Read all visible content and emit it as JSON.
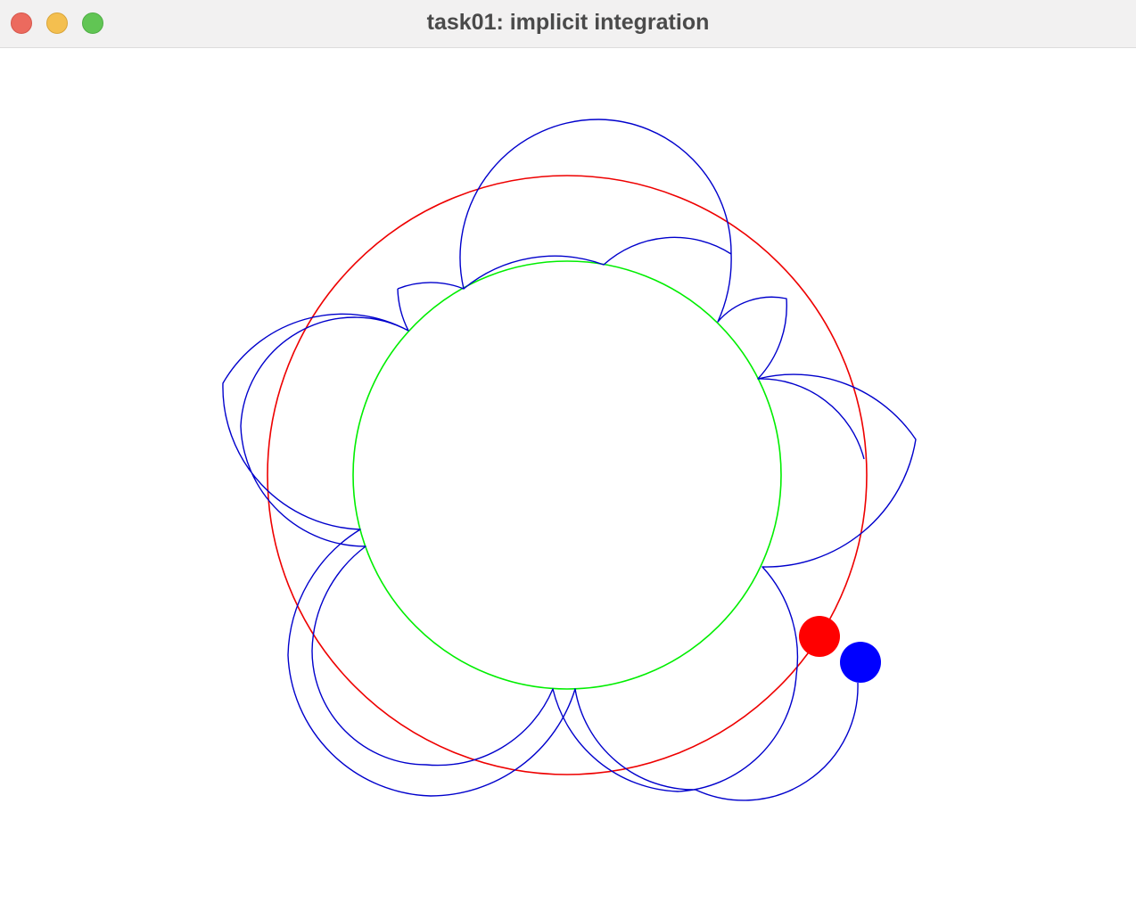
{
  "window": {
    "title": "task01: implicit integration"
  },
  "scene": {
    "colors": {
      "inner_circle": "#00ee00",
      "orbit_circle": "#ee0000",
      "trajectory": "#0000cc",
      "red_body": "#ff0000",
      "blue_body": "#0000ff"
    },
    "bodies": [
      "red-body",
      "blue-body"
    ],
    "curves": [
      "inner-circle",
      "orbit-circle",
      "trajectory"
    ]
  }
}
